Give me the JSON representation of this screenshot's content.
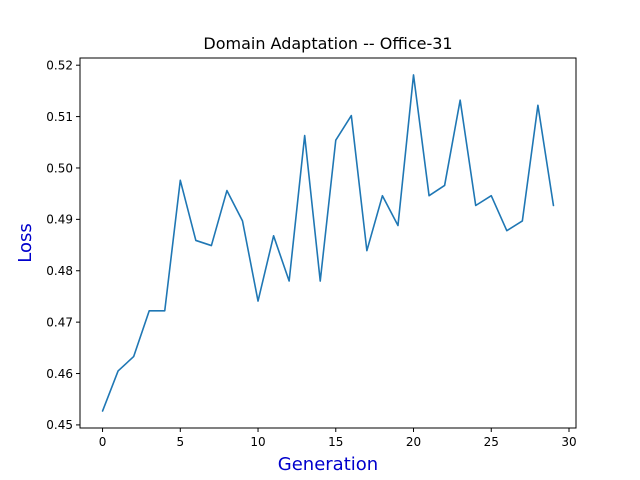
{
  "chart_data": {
    "type": "line",
    "title": "Domain Adaptation -- Office-31",
    "xlabel": "Generation",
    "ylabel": "Loss",
    "xlim": [
      -1.45,
      30.45
    ],
    "ylim": [
      0.4494,
      0.5214
    ],
    "xticks": [
      0,
      5,
      10,
      15,
      20,
      25,
      30
    ],
    "yticks": [
      0.45,
      0.46,
      0.47,
      0.48,
      0.49,
      0.5,
      0.51,
      0.52
    ],
    "grid": false,
    "legend": "none",
    "series": [
      {
        "color": "#1f77b4",
        "x": [
          0,
          1,
          2,
          3,
          4,
          5,
          6,
          7,
          8,
          9,
          10,
          11,
          12,
          13,
          14,
          15,
          16,
          17,
          18,
          19,
          20,
          21,
          22,
          23,
          24,
          25,
          26,
          27,
          28,
          29
        ],
        "y": [
          0.4527,
          0.4605,
          0.4633,
          0.4722,
          0.4722,
          0.4976,
          0.4859,
          0.4849,
          0.4956,
          0.4897,
          0.4741,
          0.4868,
          0.478,
          0.5063,
          0.478,
          0.5054,
          0.5102,
          0.4839,
          0.4946,
          0.4888,
          0.5181,
          0.4946,
          0.4966,
          0.5132,
          0.4927,
          0.4946,
          0.4878,
          0.4897,
          0.5122,
          0.4927
        ]
      }
    ],
    "label_color": "#0000cc"
  }
}
